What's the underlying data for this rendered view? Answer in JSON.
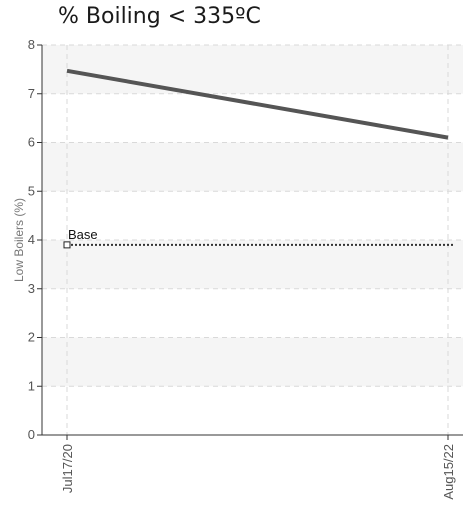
{
  "chart_data": {
    "type": "line",
    "title": "% Boiling < 335ºC",
    "xlabel": "",
    "ylabel": "Low Boilers (%)",
    "ylim": [
      0,
      8
    ],
    "y_ticks": [
      "0",
      "1",
      "2",
      "3",
      "4",
      "5",
      "6",
      "7",
      "8"
    ],
    "x_tick_labels": [
      "Jul17/20",
      "Aug15/22"
    ],
    "x": [
      "2020-07-17",
      "2022-08-15"
    ],
    "series": [
      {
        "values": [
          7.47,
          6.1
        ],
        "color": "#555555"
      }
    ],
    "reference_lines": [
      {
        "label": "Base",
        "value": 3.9,
        "color": "#333333",
        "style": "dotted"
      }
    ],
    "grid": true,
    "background_bands": true
  }
}
